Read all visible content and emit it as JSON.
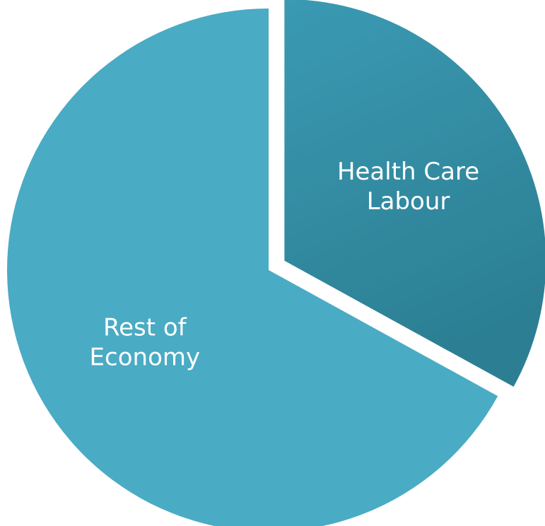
{
  "chart_data": {
    "type": "pie",
    "title": "",
    "slices": [
      {
        "label_lines": [
          "Health Care",
          "Labour"
        ],
        "value": 33,
        "color": "#3a9ab3",
        "color_dark": "#2c7f93",
        "exploded": true
      },
      {
        "label_lines": [
          "Rest of",
          "Economy"
        ],
        "value": 67,
        "color": "#4aabc4",
        "color_dark": "#4aabc4",
        "exploded": false
      }
    ],
    "start_angle_deg": 0,
    "direction": "clockwise",
    "legend": "none"
  }
}
